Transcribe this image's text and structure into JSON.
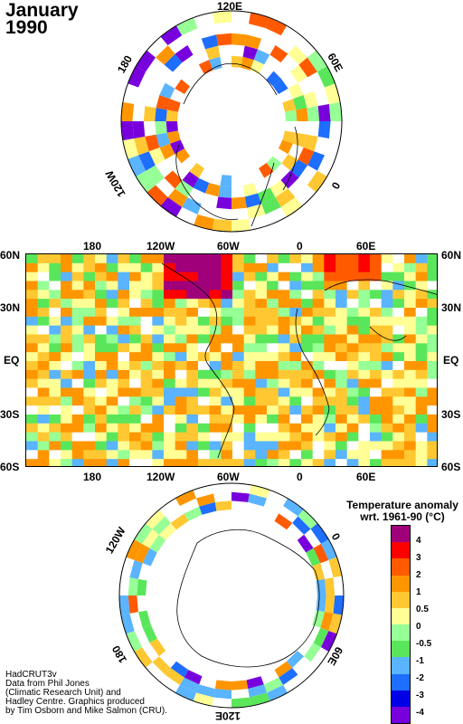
{
  "title": {
    "month": "January",
    "year": "1990"
  },
  "top_polar": {
    "labels": [
      "120E",
      "60E",
      "0",
      "120W",
      "180"
    ]
  },
  "map": {
    "top_lon_labels": [
      "180",
      "120W",
      "60W",
      "0",
      "60E"
    ],
    "bottom_lon_labels": [
      "180",
      "120W",
      "60W",
      "0",
      "60E"
    ],
    "left_lat_labels": [
      "60N",
      "30N",
      "EQ",
      "30S",
      "60S"
    ],
    "right_lat_labels": [
      "60N",
      "30N",
      "EQ",
      "30S",
      "60S"
    ]
  },
  "bottom_polar": {
    "labels": [
      "120W",
      "0",
      "60E",
      "120E",
      "180"
    ]
  },
  "legend": {
    "title_line1": "Temperature anomaly",
    "title_line2": "wrt. 1961-90  (°C)",
    "labels": [
      "4",
      "3",
      "2",
      "1",
      "0.5",
      "0",
      "-0.5",
      "-1",
      "-2",
      "-3",
      "-4"
    ],
    "colors": [
      "#a0007a",
      "#ff0000",
      "#ff5a00",
      "#ff9600",
      "#ffc832",
      "#ffff96",
      "#96ff96",
      "#5ae65a",
      "#5ab4ff",
      "#1e6eff",
      "#0000e6",
      "#7800dc"
    ]
  },
  "credits": [
    "HadCRUT3v",
    "Data from Phil Jones",
    "(Climatic Research Unit) and",
    "Hadley Centre.  Graphics produced",
    "by Tim Osborn and Mike Salmon (CRU)."
  ]
}
